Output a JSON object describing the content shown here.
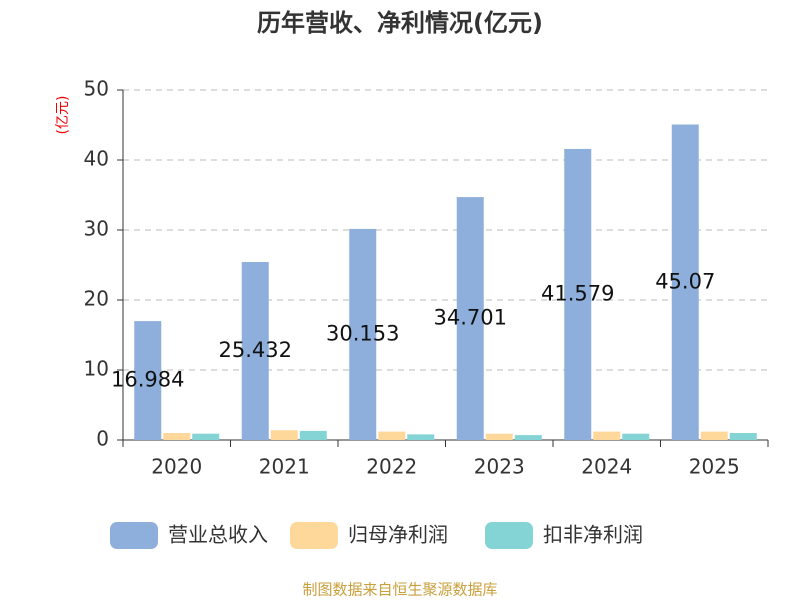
{
  "chart_data": {
    "type": "bar",
    "title": "历年营收、净利情况(亿元)",
    "y_label": "(亿元)",
    "categories": [
      "2020",
      "2021",
      "2022",
      "2023",
      "2024",
      "2025"
    ],
    "series": [
      {
        "name": "营业总收入",
        "color": "#8eaedb",
        "values": [
          16.984,
          25.432,
          30.153,
          34.701,
          41.579,
          45.07
        ],
        "show_labels": true
      },
      {
        "name": "归母净利润",
        "color": "#fdd89a",
        "values": [
          1.0,
          1.4,
          1.2,
          0.9,
          1.2,
          1.2
        ]
      },
      {
        "name": "扣非净利润",
        "color": "#84d4d6",
        "values": [
          0.9,
          1.3,
          0.8,
          0.7,
          0.9,
          1.0
        ]
      }
    ],
    "ylim": [
      0,
      50
    ],
    "yticks": [
      0,
      10,
      20,
      30,
      40,
      50
    ],
    "grid": true,
    "source": "制图数据来自恒生聚源数据库"
  }
}
